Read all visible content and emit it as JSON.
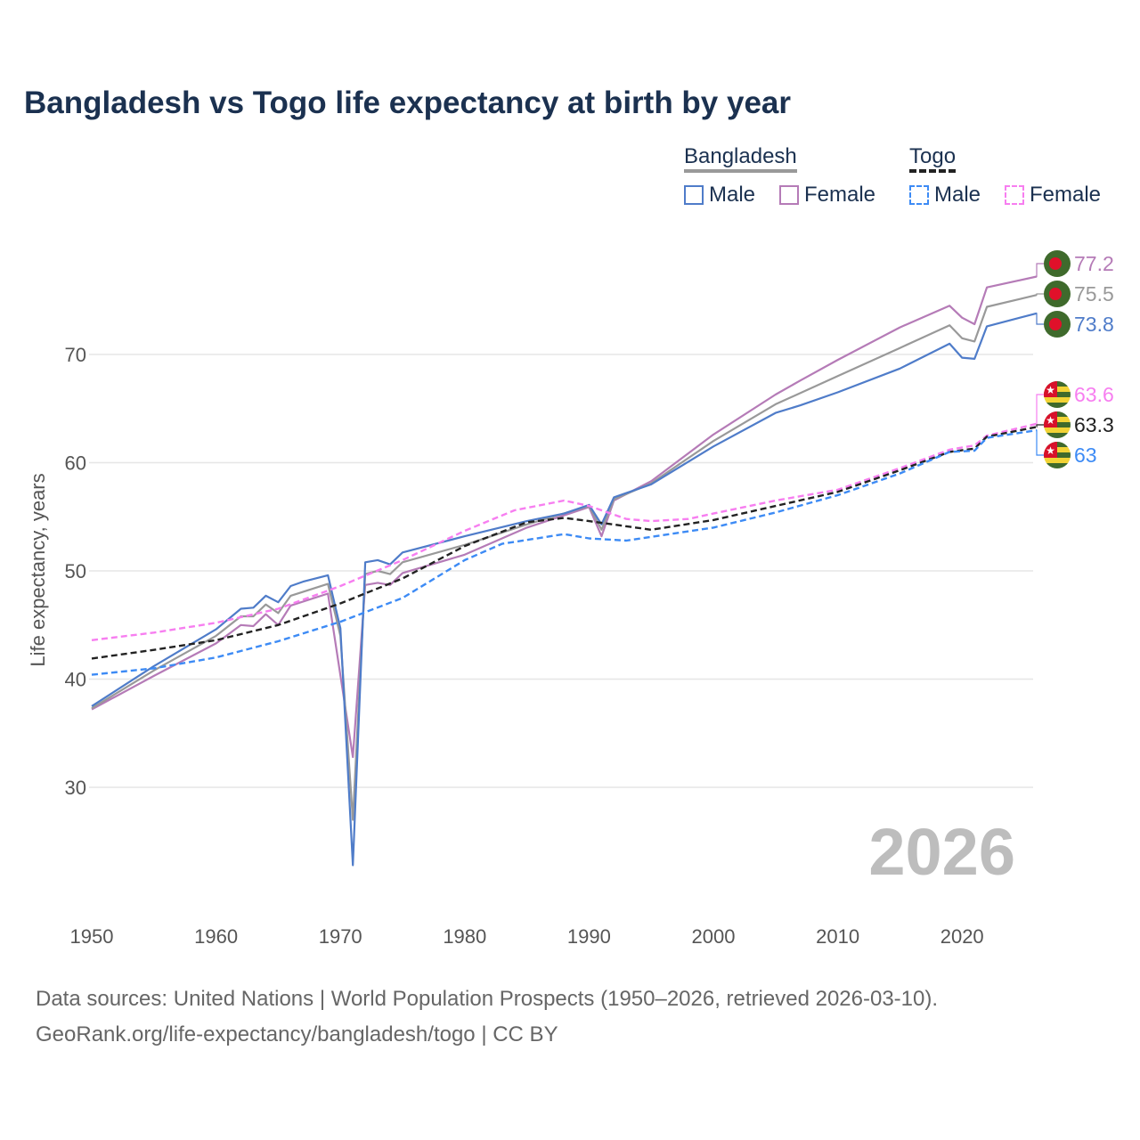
{
  "title": "Bangladesh vs Togo life expectancy at birth by year",
  "legend": {
    "groups": [
      {
        "name": "Bangladesh",
        "items": [
          {
            "label": "Male",
            "color": "#4f7cc9",
            "dashed": false
          },
          {
            "label": "Female",
            "color": "#b57bb7",
            "dashed": false
          }
        ]
      },
      {
        "name": "Togo",
        "items": [
          {
            "label": "Male",
            "color": "#3d8bf5",
            "dashed": true
          },
          {
            "label": "Female",
            "color": "#f77ef0",
            "dashed": true
          }
        ]
      }
    ]
  },
  "year_watermark": "2026",
  "source_line1": "Data sources: United Nations | World Population Prospects (1950–2026, retrieved 2026-03-10).",
  "source_line2": "GeoRank.org/life-expectancy/bangladesh/togo | CC BY",
  "chart_data": {
    "type": "line",
    "title": "Bangladesh vs Togo life expectancy at birth by year",
    "xlabel": "",
    "ylabel": "Life expectancy, years",
    "xlim": [
      1950,
      2026
    ],
    "ylim": [
      20,
      80
    ],
    "xticks": [
      1950,
      1960,
      1970,
      1980,
      1990,
      2000,
      2010,
      2020
    ],
    "yticks": [
      30,
      40,
      50,
      60,
      70
    ],
    "grid": true,
    "series": [
      {
        "name": "Bangladesh Female",
        "color": "#b57bb7",
        "dashed": false,
        "end_label": "77.2",
        "flag": "bangladesh",
        "x": [
          1950,
          1955,
          1960,
          1962,
          1963,
          1964,
          1965,
          1966,
          1969,
          1971,
          1972,
          1973,
          1974,
          1975,
          1980,
          1985,
          1990,
          1991,
          1992,
          1995,
          2000,
          2005,
          2007,
          2010,
          2015,
          2019,
          2020,
          2021,
          2022,
          2026
        ],
        "y": [
          37.2,
          40.3,
          43.3,
          45.0,
          44.9,
          46.0,
          45.0,
          46.8,
          47.9,
          32.8,
          48.7,
          48.9,
          48.7,
          49.8,
          51.5,
          54.0,
          55.9,
          53.2,
          56.5,
          58.3,
          62.6,
          66.3,
          67.6,
          69.5,
          72.5,
          74.5,
          73.4,
          72.8,
          76.2,
          77.2
        ]
      },
      {
        "name": "Bangladesh",
        "color": "#999999",
        "dashed": false,
        "end_label": "75.5",
        "flag": "bangladesh",
        "x": [
          1950,
          1955,
          1960,
          1962,
          1963,
          1964,
          1965,
          1966,
          1969,
          1970,
          1971,
          1972,
          1973,
          1974,
          1975,
          1980,
          1985,
          1990,
          1991,
          1992,
          1995,
          2000,
          2005,
          2010,
          2015,
          2019,
          2020,
          2021,
          2022,
          2026
        ],
        "y": [
          37.3,
          40.8,
          44.0,
          45.8,
          45.8,
          46.9,
          46.1,
          47.7,
          48.8,
          44.0,
          27.0,
          49.7,
          50.0,
          49.7,
          50.8,
          52.4,
          54.3,
          56.0,
          53.8,
          56.6,
          58.1,
          62.0,
          65.4,
          68.0,
          70.6,
          72.7,
          71.5,
          71.2,
          74.4,
          75.5
        ]
      },
      {
        "name": "Bangladesh Male",
        "color": "#4f7cc9",
        "dashed": false,
        "end_label": "73.8",
        "flag": "bangladesh",
        "x": [
          1950,
          1955,
          1960,
          1962,
          1963,
          1964,
          1965,
          1966,
          1967,
          1969,
          1970,
          1971,
          1972,
          1973,
          1974,
          1975,
          1980,
          1985,
          1988,
          1990,
          1991,
          1992,
          1995,
          2000,
          2005,
          2007,
          2010,
          2015,
          2019,
          2020,
          2021,
          2022,
          2026
        ],
        "y": [
          37.5,
          41.2,
          44.6,
          46.5,
          46.6,
          47.7,
          47.1,
          48.6,
          49.0,
          49.6,
          44.7,
          22.8,
          50.8,
          51.0,
          50.6,
          51.7,
          53.2,
          54.6,
          55.3,
          56.1,
          54.3,
          56.8,
          58.0,
          61.5,
          64.6,
          65.3,
          66.5,
          68.7,
          71.0,
          69.7,
          69.6,
          72.6,
          73.8
        ]
      },
      {
        "name": "Togo Female",
        "color": "#f77ef0",
        "dashed": true,
        "end_label": "63.6",
        "flag": "togo",
        "x": [
          1950,
          1955,
          1960,
          1965,
          1970,
          1975,
          1980,
          1984,
          1988,
          1990,
          1993,
          1995,
          1998,
          2000,
          2005,
          2010,
          2015,
          2019,
          2021,
          2022,
          2026
        ],
        "y": [
          43.6,
          44.3,
          45.2,
          46.5,
          48.6,
          51.0,
          53.7,
          55.6,
          56.5,
          56.0,
          54.8,
          54.6,
          54.8,
          55.3,
          56.5,
          57.5,
          59.5,
          61.2,
          61.6,
          62.5,
          63.6
        ]
      },
      {
        "name": "Togo",
        "color": "#222222",
        "dashed": true,
        "end_label": "63.3",
        "flag": "togo",
        "x": [
          1950,
          1955,
          1960,
          1965,
          1970,
          1975,
          1980,
          1985,
          1988,
          1990,
          1995,
          2000,
          2005,
          2010,
          2015,
          2019,
          2021,
          2022,
          2026
        ],
        "y": [
          41.9,
          42.7,
          43.6,
          45.0,
          47.0,
          49.3,
          52.3,
          54.5,
          54.9,
          54.6,
          53.8,
          54.7,
          56.0,
          57.3,
          59.3,
          61.0,
          61.3,
          62.4,
          63.3
        ]
      },
      {
        "name": "Togo Male",
        "color": "#3d8bf5",
        "dashed": true,
        "end_label": "63",
        "flag": "togo",
        "x": [
          1950,
          1955,
          1960,
          1965,
          1970,
          1975,
          1980,
          1983,
          1988,
          1990,
          1993,
          2000,
          2005,
          2010,
          2015,
          2019,
          2021,
          2022,
          2026
        ],
        "y": [
          40.4,
          41.0,
          42.0,
          43.5,
          45.3,
          47.5,
          51.0,
          52.5,
          53.4,
          53.0,
          52.8,
          54.0,
          55.4,
          57.0,
          59.0,
          61.0,
          61.1,
          62.3,
          63.0
        ]
      }
    ]
  }
}
